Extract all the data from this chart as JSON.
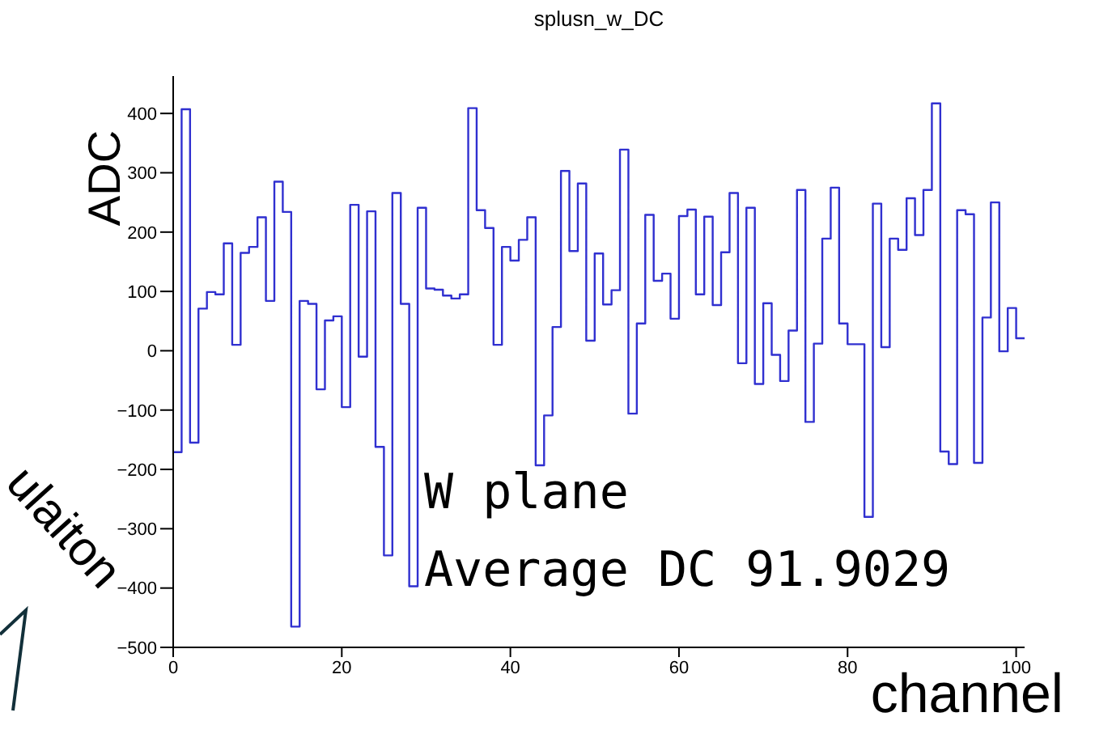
{
  "chart_data": {
    "type": "histogram",
    "title": "splusn_w_DC",
    "xlabel": "channel",
    "ylabel": "ADC",
    "annotations": [
      "W plane",
      "Average DC 91.9029",
      "ulaiton"
    ],
    "bins": [
      0,
      1,
      2,
      3,
      4,
      5,
      6,
      7,
      8,
      9,
      10,
      11,
      12,
      13,
      14,
      15,
      16,
      17,
      18,
      19,
      20,
      21,
      22,
      23,
      24,
      25,
      26,
      27,
      28,
      29,
      30,
      31,
      32,
      33,
      34,
      35,
      36,
      37,
      38,
      39,
      40,
      41,
      42,
      43,
      44,
      45,
      46,
      47,
      48,
      49,
      50,
      51,
      52,
      53,
      54,
      55,
      56,
      57,
      58,
      59,
      60,
      61,
      62,
      63,
      64,
      65,
      66,
      67,
      68,
      69,
      70,
      71,
      72,
      73,
      74,
      75,
      76,
      77,
      78,
      79,
      80,
      81,
      82,
      83,
      84,
      85,
      86,
      87,
      88,
      89,
      90,
      91,
      92,
      93,
      94,
      95,
      96,
      97,
      98,
      99,
      100,
      101
    ],
    "values": [
      -171,
      407,
      -155,
      71,
      99,
      95,
      181,
      10,
      165,
      175,
      225,
      84,
      285,
      234,
      -465,
      84,
      79,
      -65,
      51,
      58,
      -95,
      246,
      -10,
      235,
      -162,
      -345,
      266,
      79,
      -397,
      241,
      105,
      103,
      93,
      88,
      95,
      409,
      237,
      207,
      10,
      175,
      152,
      187,
      225,
      -193,
      -109,
      40,
      303,
      168,
      282,
      17,
      164,
      78,
      102,
      339,
      -106,
      46,
      229,
      118,
      130,
      54,
      227,
      238,
      95,
      226,
      77,
      166,
      266,
      -21,
      241,
      -56,
      80,
      -7,
      -51,
      34,
      271,
      -120,
      12,
      189,
      275,
      46,
      11,
      11,
      -280,
      248,
      6,
      189,
      170,
      257,
      195,
      271,
      417,
      -170,
      -191,
      237,
      230,
      -189,
      56,
      250,
      -1,
      72,
      21
    ],
    "color": "#3030d0",
    "xlim": [
      0,
      101
    ],
    "ylim": [
      -500,
      463
    ],
    "xticks": [
      0,
      20,
      40,
      60,
      80,
      100
    ],
    "yticks": [
      -500,
      -400,
      -300,
      -200,
      -100,
      0,
      100,
      200,
      300,
      400
    ],
    "grid": false,
    "legend": false
  }
}
